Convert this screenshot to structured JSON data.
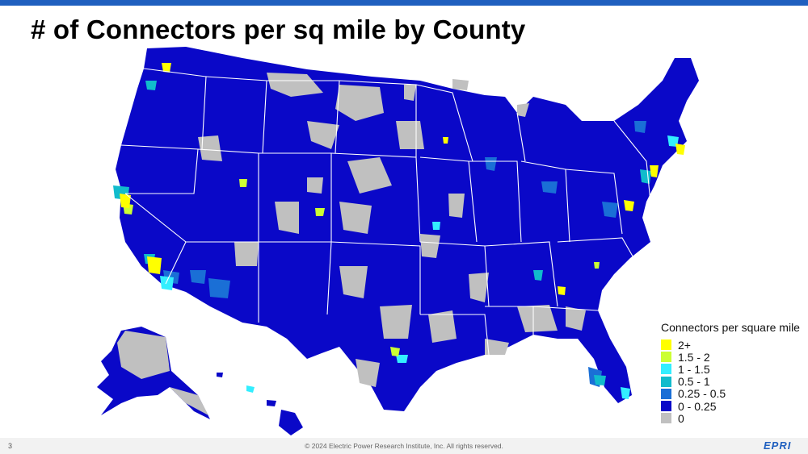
{
  "slide": {
    "title": "# of Connectors per sq mile by County",
    "page_number": "3",
    "copyright": "© 2024 Electric Power Research Institute, Inc. All rights reserved.",
    "logo_text": "EPRI"
  },
  "legend": {
    "title": "Connectors per square mile",
    "items": [
      {
        "label": "2+",
        "color": "#ffff00"
      },
      {
        "label": "1.5 - 2",
        "color": "#ccff33"
      },
      {
        "label": "1 - 1.5",
        "color": "#33eeff"
      },
      {
        "label": "0.5 - 1",
        "color": "#11bbcc"
      },
      {
        "label": "0.25 - 0.5",
        "color": "#1a6fd6"
      },
      {
        "label": "0 - 0.25",
        "color": "#0a08c8"
      },
      {
        "label": "0",
        "color": "#c0c0c0"
      }
    ]
  },
  "colors": {
    "accent_bar": "#1f5fbf",
    "state_border": "#ffffff"
  }
}
